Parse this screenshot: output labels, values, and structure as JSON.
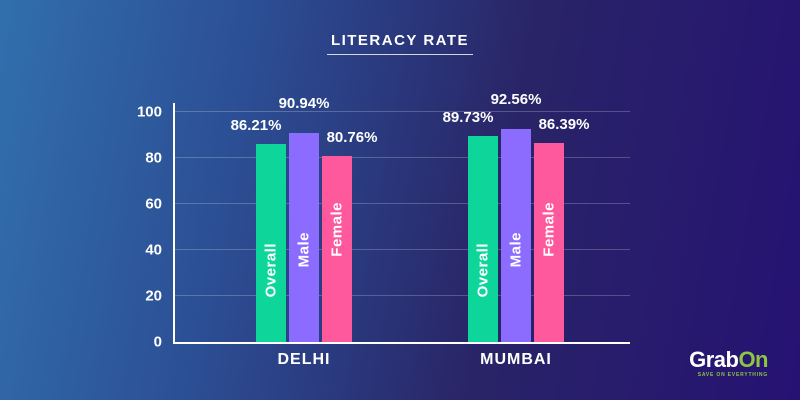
{
  "chart_data": {
    "type": "bar",
    "title": "LITERACY RATE",
    "categories": [
      "DELHI",
      "MUMBAI"
    ],
    "series": [
      {
        "name": "Overall",
        "values": [
          86.21,
          89.73
        ],
        "color": "#0ed69a"
      },
      {
        "name": "Male",
        "values": [
          90.94,
          92.56
        ],
        "color": "#8c6cfe"
      },
      {
        "name": "Female",
        "values": [
          80.76,
          86.39
        ],
        "color": "#fd599c"
      }
    ],
    "value_labels": [
      [
        "86.21%",
        "90.94%",
        "80.76%"
      ],
      [
        "89.73%",
        "92.56%",
        "86.39%"
      ]
    ],
    "xlabel": "",
    "ylabel": "",
    "ylim": [
      0,
      100
    ],
    "yticks": [
      0,
      20,
      40,
      60,
      80,
      100
    ],
    "grid": true,
    "legend_position": "inside-bars",
    "colors": {
      "axis": "#ffffff",
      "text": "#ffffff",
      "background_left": "#316fad",
      "background_right": "#261273"
    }
  },
  "branding": {
    "brand_grab": "Grab",
    "brand_on": "On",
    "tagline": "SAVE ON EVERYTHING",
    "brand_green": "#8dc63f"
  }
}
